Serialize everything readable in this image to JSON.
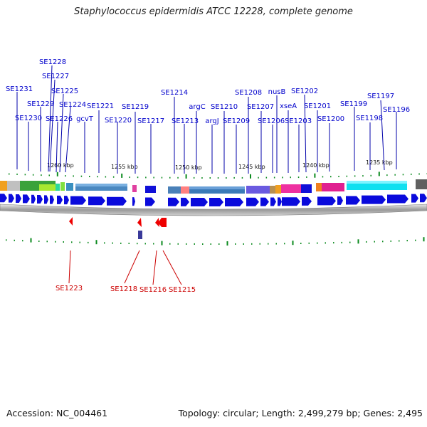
{
  "title": "Staphylococcus epidermidis ATCC 12228, complete genome",
  "footer": {
    "accession": "Accession: NC_004461",
    "summary": "Topology: circular; Length: 2,499,279 bp; Genes: 2,495"
  },
  "colors": {
    "forward_gene": "#0a0adc",
    "reverse_gene": "#e00000",
    "label_line_forward": "#0000aa",
    "label_line_reverse": "#cc0000",
    "tick": "#0b8a1e",
    "backbone": "#b8b8b8"
  },
  "scale_labels": [
    "1260 kbp",
    "1255 kbp",
    "1250 kbp",
    "1245 kbp",
    "1240 kbp",
    "1235 kbp"
  ],
  "forward_gene_labels": [
    "SE1231",
    "SE1230",
    "SE1229",
    "SE1228",
    "SE1227",
    "SE1226",
    "SE1225",
    "SE1224",
    "gcvT",
    "SE1221",
    "SE1220",
    "SE1219",
    "SE1217",
    "SE1214",
    "SE1213",
    "argC",
    "argJ",
    "SE1210",
    "SE1209",
    "SE1208",
    "SE1207",
    "SE1206",
    "nusB",
    "xseA",
    "SE1203",
    "SE1202",
    "SE1201",
    "SE1200",
    "SE1199",
    "SE1198",
    "SE1197",
    "SE1196"
  ],
  "reverse_gene_labels": [
    "SE1223",
    "SE1218",
    "SE1216",
    "SE1215"
  ]
}
